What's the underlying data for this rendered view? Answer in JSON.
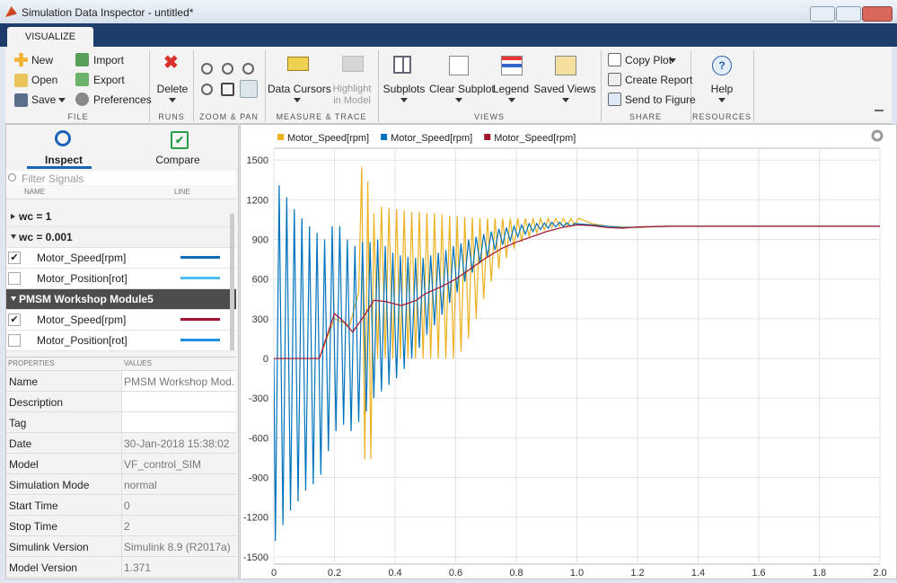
{
  "window": {
    "title": "Simulation Data Inspector - untitled*"
  },
  "ribbon": {
    "tab": "VISUALIZE",
    "groups": [
      {
        "label": "FILE",
        "buttons": [
          "New",
          "Open",
          "Save",
          "Import",
          "Export",
          "Preferences"
        ]
      },
      {
        "label": "RUNS",
        "buttons": [
          "Delete"
        ]
      },
      {
        "label": "ZOOM & PAN"
      },
      {
        "label": "MEASURE & TRACE",
        "buttons": [
          "Data Cursors",
          "Highlight in Model"
        ]
      },
      {
        "label": "VIEWS",
        "buttons": [
          "Subplots",
          "Clear Subplot",
          "Legend",
          "Saved Views"
        ]
      },
      {
        "label": "SHARE",
        "buttons": [
          "Copy Plot",
          "Create Report",
          "Send to Figure"
        ]
      },
      {
        "label": "RESOURCES",
        "buttons": [
          "Help"
        ]
      }
    ]
  },
  "inspector": {
    "tabs": [
      "Inspect",
      "Compare"
    ],
    "filter_placeholder": "Filter Signals",
    "columns": [
      "NAME",
      "LINE"
    ],
    "selected_run": 2,
    "runs": [
      {
        "name": "wc = 1",
        "signals": []
      },
      {
        "name": "wc = 0.001",
        "signals": [
          {
            "name": "Motor_Speed[rpm]",
            "checked": true,
            "color": "#0e6cb4"
          },
          {
            "name": "Motor_Position[rot]",
            "checked": false,
            "color": "#4dbeee"
          }
        ]
      },
      {
        "name": "PMSM Workshop Module5",
        "signals": [
          {
            "name": "Motor_Speed[rpm]",
            "checked": true,
            "color": "#a2142f"
          },
          {
            "name": "Motor_Position[rot]",
            "checked": false,
            "color": "#1e90e0"
          }
        ]
      }
    ]
  },
  "properties": {
    "columns": [
      "PROPERTIES",
      "VALUES"
    ],
    "rows": [
      [
        "Name",
        "PMSM Workshop Mod..."
      ],
      [
        "Description"
      ],
      [
        "Tag"
      ],
      [
        "Date",
        "30-Jan-2018 15:38:02"
      ],
      [
        "Model",
        "VF_control_SIM"
      ],
      [
        "Simulation Mode",
        "normal"
      ],
      [
        "Start Time",
        "0"
      ],
      [
        "Stop Time",
        "2"
      ],
      [
        "Simulink Version",
        "Simulink 8.9 (R2017a)"
      ],
      [
        "Model Version",
        "1.371"
      ]
    ]
  },
  "chart_data": {
    "type": "line",
    "grid": true,
    "legend": "top",
    "xlim": [
      0,
      2
    ],
    "ylim": [
      -1555,
      1590
    ],
    "xticks": [
      0,
      0.2,
      0.4,
      0.6,
      0.8,
      {
        "value": 1,
        "label": "1.0"
      },
      1.2,
      1.4,
      1.6,
      1.8,
      {
        "value": 2,
        "label": "2.0"
      }
    ],
    "yticks": [
      -1500,
      -1200,
      -900,
      -600,
      -300,
      0,
      300,
      600,
      900,
      1200,
      1500
    ],
    "series": [
      {
        "name": "Motor_Speed[rpm]",
        "color": "#edb120",
        "x": [
          0,
          0.15,
          0.2,
          0.25,
          0.28,
          0.29,
          0.3,
          0.31,
          0.32,
          0.33,
          0.3425,
          0.355,
          0.3675,
          0.38,
          0.3925,
          0.405,
          0.4175,
          0.43,
          0.4425,
          0.455,
          0.4675,
          0.48,
          0.4925,
          0.505,
          0.5175,
          0.53,
          0.5425,
          0.555,
          0.5675,
          0.58,
          0.5925,
          0.605,
          0.6175,
          0.63,
          0.6425,
          0.655,
          0.6675,
          0.68,
          0.6925,
          0.705,
          0.7175,
          0.73,
          0.7425,
          0.755,
          0.7675,
          0.78,
          0.7925,
          0.805,
          0.8175,
          0.83,
          0.8425,
          0.855,
          0.8675,
          0.88,
          0.8925,
          0.905,
          0.9175,
          0.93,
          0.9425,
          0.955,
          0.9675,
          0.98,
          0.9925,
          1.005,
          1.05,
          1.1,
          1.2,
          1.3,
          2
        ],
        "values": [
          0,
          0,
          300,
          250,
          500,
          1450,
          -760,
          1340,
          -760,
          1100,
          0,
          1150,
          0,
          1140,
          0,
          1130,
          0,
          1120,
          0,
          1110,
          0,
          1110,
          0,
          1100,
          0,
          1100,
          0,
          1090,
          0,
          1080,
          0,
          1080,
          50,
          1070,
          150,
          1070,
          300,
          1060,
          450,
          1060,
          580,
          1060,
          680,
          1060,
          760,
          1060,
          830,
          1060,
          880,
          1060,
          920,
          1060,
          950,
          1060,
          970,
          1060,
          990,
          1060,
          1000,
          1060,
          1000,
          1060,
          1010,
          1060,
          1020,
          1000,
          990,
          1000,
          1000
        ]
      },
      {
        "name": "Motor_Speed[rpm]",
        "color": "#0072bd",
        "x": [
          0,
          0.005,
          0.0175,
          0.03,
          0.0425,
          0.055,
          0.0675,
          0.08,
          0.0925,
          0.105,
          0.1175,
          0.13,
          0.1425,
          0.155,
          0.1675,
          0.18,
          0.1925,
          0.205,
          0.2175,
          0.23,
          0.2425,
          0.255,
          0.2675,
          0.28,
          0.2925,
          0.305,
          0.3175,
          0.33,
          0.3425,
          0.355,
          0.3675,
          0.38,
          0.3925,
          0.405,
          0.4175,
          0.43,
          0.4425,
          0.455,
          0.4675,
          0.48,
          0.4925,
          0.505,
          0.5175,
          0.53,
          0.5425,
          0.555,
          0.5675,
          0.58,
          0.5925,
          0.605,
          0.6175,
          0.63,
          0.6425,
          0.655,
          0.6675,
          0.68,
          0.6925,
          0.705,
          0.7175,
          0.73,
          0.7425,
          0.755,
          0.7675,
          0.78,
          0.7925,
          0.805,
          0.8175,
          0.83,
          0.8425,
          0.855,
          0.8675,
          0.88,
          0.8925,
          0.905,
          0.9175,
          0.93,
          0.9425,
          0.955,
          0.9675,
          0.98,
          0.9925,
          1.05,
          1.15,
          1.3,
          2
        ],
        "values": [
          0,
          -1380,
          1310,
          -1260,
          1220,
          -1150,
          1130,
          -1080,
          1060,
          -1000,
          1000,
          -950,
          950,
          -880,
          900,
          -700,
          1000,
          -550,
          1000,
          -500,
          900,
          -550,
          850,
          -480,
          880,
          -400,
          880,
          -300,
          900,
          -250,
          850,
          -200,
          800,
          -150,
          780,
          -80,
          770,
          0,
          760,
          80,
          760,
          180,
          780,
          250,
          800,
          330,
          820,
          420,
          850,
          500,
          870,
          580,
          900,
          650,
          920,
          720,
          940,
          770,
          960,
          820,
          980,
          860,
          990,
          890,
          1000,
          920,
          1010,
          940,
          1020,
          960,
          1020,
          975,
          1025,
          985,
          1030,
          995,
          1030,
          1000,
          1025,
          1000,
          1020,
          1010,
          990,
          1000,
          1000
        ]
      },
      {
        "name": "Motor_Speed[rpm]",
        "color": "#a2142f",
        "x": [
          0,
          0.15,
          0.2,
          0.23,
          0.26,
          0.3,
          0.33,
          0.37,
          0.42,
          0.47,
          0.5,
          0.55,
          0.6,
          0.65,
          0.7,
          0.75,
          0.8,
          0.85,
          0.9,
          0.95,
          1,
          1.05,
          1.1,
          1.15,
          1.2,
          1.3,
          2
        ],
        "values": [
          0,
          0,
          340,
          280,
          200,
          330,
          440,
          430,
          400,
          440,
          490,
          540,
          600,
          680,
          760,
          830,
          880,
          920,
          960,
          990,
          1010,
          1005,
          990,
          985,
          995,
          1000,
          1000
        ]
      }
    ]
  }
}
